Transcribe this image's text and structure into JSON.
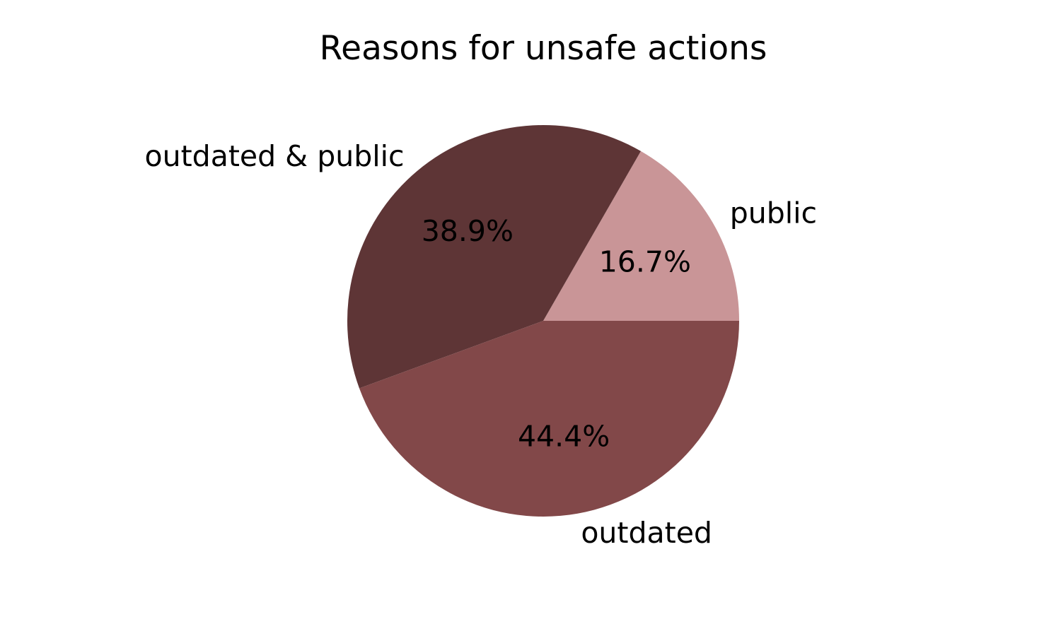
{
  "chart_data": {
    "type": "pie",
    "title": "Reasons for unsafe actions",
    "slices": [
      {
        "label": "public",
        "value": 16.7,
        "pct_label": "16.7%",
        "color": "#c99597"
      },
      {
        "label": "outdated & public",
        "value": 38.9,
        "pct_label": "38.9%",
        "color": "#5e3536"
      },
      {
        "label": "outdated",
        "value": 44.4,
        "pct_label": "44.4%",
        "color": "#824849"
      }
    ],
    "direction": "counterclockwise",
    "start_angle_degrees": 0,
    "legend": "none"
  }
}
